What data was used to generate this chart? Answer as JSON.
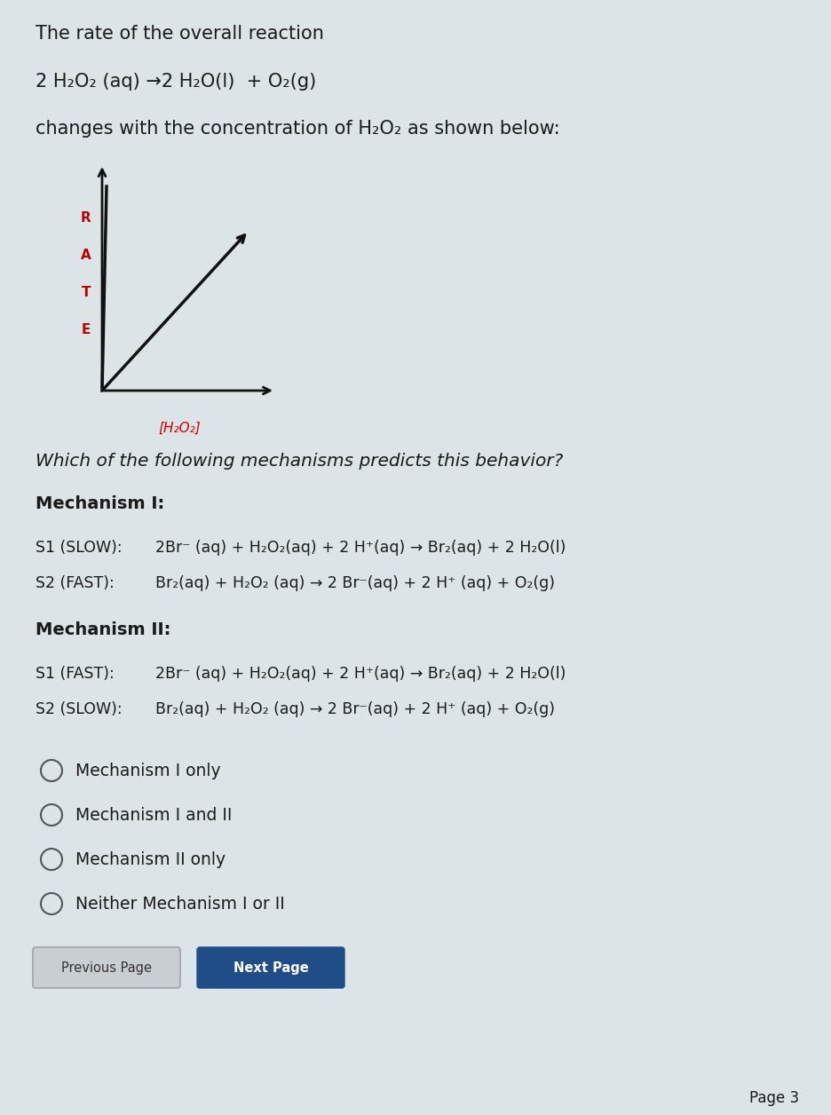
{
  "bg_color": "#dde4e8",
  "text_color": "#1a1a1a",
  "title_line1": "The rate of the overall reaction",
  "reaction_main": "2 H₂O₂ (aq) →2 H₂O(l)  + O₂(g)",
  "subtitle": "changes with the concentration of H₂O₂ as shown below:",
  "question": "Which of the following mechanisms predicts this behavior?",
  "mech1_title": "Mechanism I:",
  "mech1_s1_label": "S1 (SLOW):",
  "mech1_s1_eq": "2Br⁻ (aq) + H₂O₂(aq) + 2 H⁺(aq) → Br₂(aq) + 2 H₂O(l)",
  "mech1_s2_label": "S2 (FAST):",
  "mech1_s2_eq": "Br₂(aq) + H₂O₂ (aq) → 2 Br⁻(aq) + 2 H⁺ (aq) + O₂(g)",
  "mech2_title": "Mechanism II:",
  "mech2_s1_label": "S1 (FAST):",
  "mech2_s1_eq": "2Br⁻ (aq) + H₂O₂(aq) + 2 H⁺(aq) → Br₂(aq) + 2 H₂O(l)",
  "mech2_s2_label": "S2 (SLOW):",
  "mech2_s2_eq": "Br₂(aq) + H₂O₂ (aq) → 2 Br⁻(aq) + 2 H⁺ (aq) + O₂(g)",
  "options": [
    "Mechanism I only",
    "Mechanism I and II",
    "Mechanism II only",
    "Neither Mechanism I or II"
  ],
  "btn1_text": "Previous Page",
  "btn2_text": "Next Page",
  "page_label": "Page 3",
  "rate_label_color": "#bb0000",
  "axis_color": "#111111",
  "graph_line_color": "#111111",
  "H2O2_label_color": "#cc0000"
}
